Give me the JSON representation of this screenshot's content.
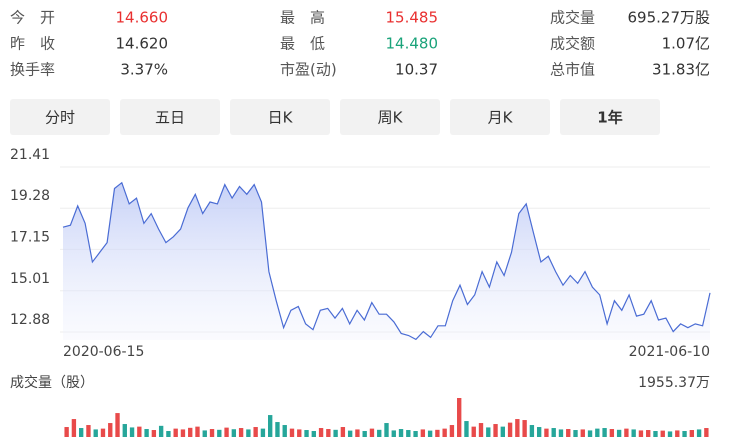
{
  "stats": [
    [
      {
        "label": "今　开",
        "value": "14.660",
        "color": "#e93030"
      },
      {
        "label": "最　高",
        "value": "15.485",
        "color": "#e93030"
      },
      {
        "label": "成交量",
        "value": "695.27万股",
        "color": "#333333"
      }
    ],
    [
      {
        "label": "昨　收",
        "value": "14.620",
        "color": "#333333"
      },
      {
        "label": "最　低",
        "value": "14.480",
        "color": "#1aa37a"
      },
      {
        "label": "成交额",
        "value": "1.07亿",
        "color": "#333333"
      }
    ],
    [
      {
        "label": "换手率",
        "value": "3.37%",
        "color": "#333333"
      },
      {
        "label": "市盈(动)",
        "value": "10.37",
        "color": "#333333"
      },
      {
        "label": "总市值",
        "value": "31.83亿",
        "color": "#333333"
      }
    ]
  ],
  "tabs": {
    "items": [
      "分时",
      "五日",
      "日K",
      "周K",
      "月K",
      "1年"
    ],
    "active": 5
  },
  "chart_data": [
    {
      "type": "line",
      "color": "#4a6cd4",
      "ylim": [
        12.88,
        21.41
      ],
      "yticks": [
        21.41,
        19.28,
        17.15,
        15.01,
        12.88
      ],
      "grid": true,
      "categories": [
        "2020-06-15",
        null,
        null,
        null,
        null,
        null,
        null,
        null,
        null,
        null,
        null,
        null,
        null,
        null,
        null,
        null,
        null,
        null,
        null,
        null,
        null,
        null,
        null,
        null,
        null,
        null,
        null,
        null,
        null,
        null,
        null,
        null,
        null,
        null,
        null,
        null,
        null,
        null,
        null,
        null,
        null,
        null,
        null,
        null,
        null,
        null,
        null,
        null,
        null,
        null,
        null,
        null,
        null,
        null,
        null,
        null,
        null,
        null,
        null,
        null,
        null,
        null,
        null,
        null,
        null,
        null,
        null,
        null,
        null,
        null,
        null,
        null,
        null,
        null,
        null,
        null,
        null,
        null,
        null,
        null,
        null,
        null,
        null,
        null,
        null,
        null,
        null,
        null,
        "2021-06-10"
      ],
      "values": [
        18.3,
        18.4,
        19.4,
        18.5,
        16.5,
        17,
        17.5,
        20.3,
        20.6,
        19.5,
        19.8,
        18.5,
        19,
        18.2,
        17.5,
        17.8,
        18.2,
        19.3,
        20,
        19,
        19.6,
        19.5,
        20.5,
        19.8,
        20.4,
        20,
        20.5,
        19.6,
        16,
        14.5,
        13.1,
        14,
        14.2,
        13.3,
        13,
        14,
        14.1,
        13.6,
        14.1,
        13.3,
        14,
        13.5,
        14.4,
        13.8,
        13.8,
        13.4,
        12.8,
        12.7,
        12.5,
        12.9,
        12.6,
        13.2,
        13.2,
        14.5,
        15.3,
        14.3,
        14.8,
        16,
        15.2,
        16.5,
        15.8,
        17,
        19,
        19.5,
        18,
        16.5,
        16.8,
        16,
        15.3,
        15.8,
        15.4,
        16,
        15.2,
        14.8,
        13.3,
        14.5,
        14,
        14.8,
        13.7,
        13.8,
        14.5,
        13.5,
        13.6,
        12.9,
        13.3,
        13.1,
        13.3,
        13.2,
        14.9
      ]
    },
    {
      "type": "bar",
      "title": "成交量（股）",
      "ylim": [
        0,
        1955.37
      ],
      "yticks": [
        {
          "value": 1955.37,
          "label": "1955.37万"
        }
      ],
      "values": [
        500,
        900,
        450,
        600,
        380,
        420,
        700,
        1200,
        650,
        480,
        520,
        400,
        350,
        560,
        300,
        420,
        380,
        460,
        520,
        330,
        400,
        360,
        470,
        390,
        450,
        380,
        500,
        420,
        1100,
        750,
        600,
        420,
        380,
        350,
        300,
        450,
        400,
        360,
        500,
        320,
        380,
        300,
        420,
        360,
        700,
        330,
        400,
        350,
        300,
        380,
        320,
        360,
        420,
        600,
        1955.37,
        800,
        520,
        700,
        480,
        650,
        520,
        720,
        900,
        850,
        600,
        500,
        420,
        450,
        380,
        400,
        350,
        380,
        330,
        420,
        450,
        400,
        360,
        420,
        380,
        330,
        350,
        300,
        320,
        280,
        330,
        300,
        350,
        380,
        450
      ],
      "colors": [
        "#e84a4a",
        "#e84a4a",
        "#26a69a",
        "#e84a4a",
        "#26a69a",
        "#e84a4a",
        "#e84a4a",
        "#e84a4a",
        "#26a69a",
        "#26a69a",
        "#e84a4a",
        "#26a69a",
        "#e84a4a",
        "#26a69a",
        "#26a69a",
        "#e84a4a",
        "#e84a4a",
        "#e84a4a",
        "#e84a4a",
        "#26a69a",
        "#e84a4a",
        "#26a69a",
        "#e84a4a",
        "#26a69a",
        "#e84a4a",
        "#26a69a",
        "#e84a4a",
        "#26a69a",
        "#26a69a",
        "#26a69a",
        "#26a69a",
        "#e84a4a",
        "#e84a4a",
        "#26a69a",
        "#26a69a",
        "#e84a4a",
        "#e84a4a",
        "#26a69a",
        "#e84a4a",
        "#26a69a",
        "#e84a4a",
        "#26a69a",
        "#e84a4a",
        "#26a69a",
        "#26a69a",
        "#26a69a",
        "#26a69a",
        "#26a69a",
        "#26a69a",
        "#e84a4a",
        "#26a69a",
        "#e84a4a",
        "#e84a4a",
        "#e84a4a",
        "#e84a4a",
        "#26a69a",
        "#e84a4a",
        "#e84a4a",
        "#26a69a",
        "#e84a4a",
        "#26a69a",
        "#e84a4a",
        "#e84a4a",
        "#e84a4a",
        "#26a69a",
        "#26a69a",
        "#e84a4a",
        "#26a69a",
        "#26a69a",
        "#e84a4a",
        "#26a69a",
        "#e84a4a",
        "#26a69a",
        "#26a69a",
        "#26a69a",
        "#e84a4a",
        "#26a69a",
        "#e84a4a",
        "#26a69a",
        "#e84a4a",
        "#e84a4a",
        "#26a69a",
        "#e84a4a",
        "#26a69a",
        "#e84a4a",
        "#26a69a",
        "#e84a4a",
        "#26a69a",
        "#e84a4a"
      ]
    }
  ]
}
